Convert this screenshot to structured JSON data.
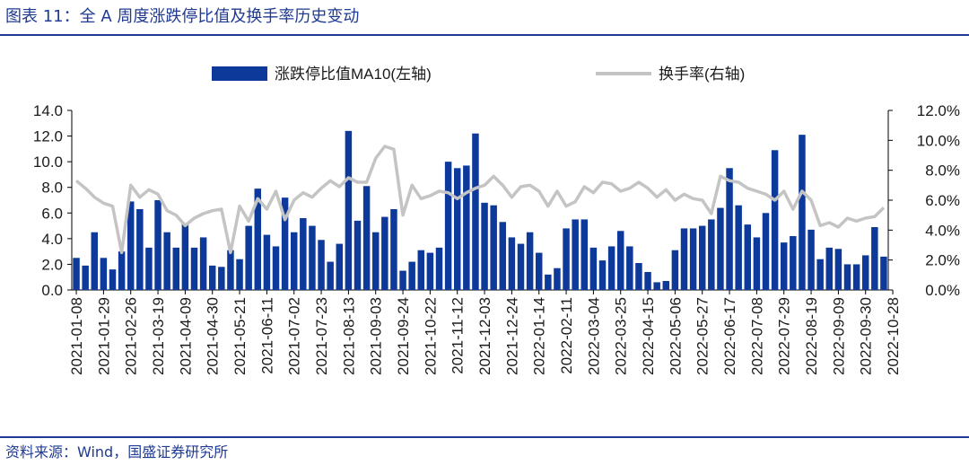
{
  "header": {
    "title": "图表 11：全 A 周度涨跌停比值及换手率历史变动"
  },
  "footer": {
    "source": "资料来源：Wind，国盛证券研究所"
  },
  "colors": {
    "bar": "#0d3a9a",
    "line": "#c4c4c4",
    "text": "#1a1a1a",
    "accent": "#1f3a93"
  },
  "chart_data": {
    "type": "bar+line",
    "title": "全 A 周度涨跌停比值及换手率历史变动",
    "legend": {
      "position": "top",
      "entries": [
        "涨跌停比值MA10(左轴)",
        "换手率(右轴)"
      ]
    },
    "y_left": {
      "ylim": [
        0,
        14
      ],
      "ticks": [
        "14.0",
        "12.0",
        "10.0",
        "8.0",
        "6.0",
        "4.0",
        "2.0",
        "0.0"
      ]
    },
    "y_right": {
      "ylim": [
        0,
        12
      ],
      "ticks": [
        "12.0%",
        "10.0%",
        "8.0%",
        "6.0%",
        "4.0%",
        "2.0%",
        "0.0%"
      ]
    },
    "x_tick_labels": [
      "2021-01-08",
      "2021-01-29",
      "2021-02-26",
      "2021-03-19",
      "2021-04-09",
      "2021-04-30",
      "2021-05-21",
      "2021-06-11",
      "2021-07-02",
      "2021-07-23",
      "2021-08-13",
      "2021-09-03",
      "2021-09-24",
      "2021-10-22",
      "2021-11-12",
      "2021-12-03",
      "2021-12-24",
      "2022-01-14",
      "2022-02-11",
      "2022-03-04",
      "2022-03-25",
      "2022-04-15",
      "2022-05-06",
      "2022-05-27",
      "2022-06-17",
      "2022-07-08",
      "2022-07-29",
      "2022-08-19",
      "2022-09-09",
      "2022-09-30",
      "2022-10-28"
    ],
    "x_tick_every": 3,
    "series": [
      {
        "name": "涨跌停比值MA10(左轴)",
        "axis": "left",
        "type": "bar",
        "values": [
          2.5,
          1.9,
          4.5,
          2.5,
          1.6,
          3.0,
          6.9,
          6.3,
          3.3,
          7.0,
          4.5,
          3.3,
          5.2,
          3.3,
          4.1,
          1.9,
          1.8,
          3.1,
          2.4,
          5.0,
          7.9,
          4.3,
          3.4,
          7.2,
          4.5,
          5.6,
          5.0,
          3.9,
          2.2,
          3.6,
          12.4,
          5.4,
          8.1,
          4.5,
          5.7,
          6.3,
          1.5,
          2.2,
          3.1,
          2.9,
          3.3,
          10.0,
          9.5,
          9.7,
          12.2,
          6.8,
          6.6,
          5.3,
          4.1,
          3.6,
          4.5,
          2.9,
          1.2,
          1.7,
          4.8,
          5.5,
          5.5,
          3.3,
          2.3,
          3.4,
          4.6,
          3.4,
          2.1,
          1.4,
          0.6,
          0.7,
          3.1,
          4.8,
          4.8,
          5.0,
          5.5,
          6.4,
          9.5,
          6.6,
          5.1,
          4.1,
          6.0,
          10.9,
          3.7,
          4.2,
          12.1,
          4.7,
          2.4,
          3.3,
          3.2,
          2.0,
          2.0,
          2.7,
          4.9,
          2.6
        ]
      },
      {
        "name": "换手率(右轴)",
        "axis": "right",
        "type": "line",
        "values": [
          7.3,
          6.8,
          6.2,
          5.8,
          5.6,
          2.5,
          7.0,
          6.2,
          6.7,
          6.4,
          5.3,
          5.0,
          4.3,
          4.8,
          5.1,
          5.3,
          5.4,
          2.5,
          5.6,
          4.6,
          6.1,
          5.4,
          6.6,
          4.7,
          6.0,
          6.5,
          6.2,
          6.8,
          7.3,
          6.9,
          7.5,
          7.2,
          7.2,
          8.8,
          9.6,
          9.4,
          5.0,
          7.0,
          6.1,
          6.3,
          6.6,
          6.5,
          6.1,
          6.5,
          6.8,
          7.0,
          7.6,
          7.0,
          6.2,
          6.9,
          7.0,
          6.6,
          5.6,
          6.6,
          5.6,
          5.9,
          6.9,
          6.5,
          7.2,
          7.1,
          6.6,
          6.8,
          7.2,
          6.8,
          6.2,
          6.7,
          6.0,
          6.4,
          6.1,
          6.0,
          5.1,
          7.6,
          7.3,
          7.2,
          6.8,
          6.6,
          6.4,
          6.0,
          6.6,
          5.4,
          6.6,
          6.0,
          4.3,
          4.5,
          4.2,
          4.8,
          4.6,
          4.8,
          4.9,
          5.5
        ]
      }
    ]
  }
}
